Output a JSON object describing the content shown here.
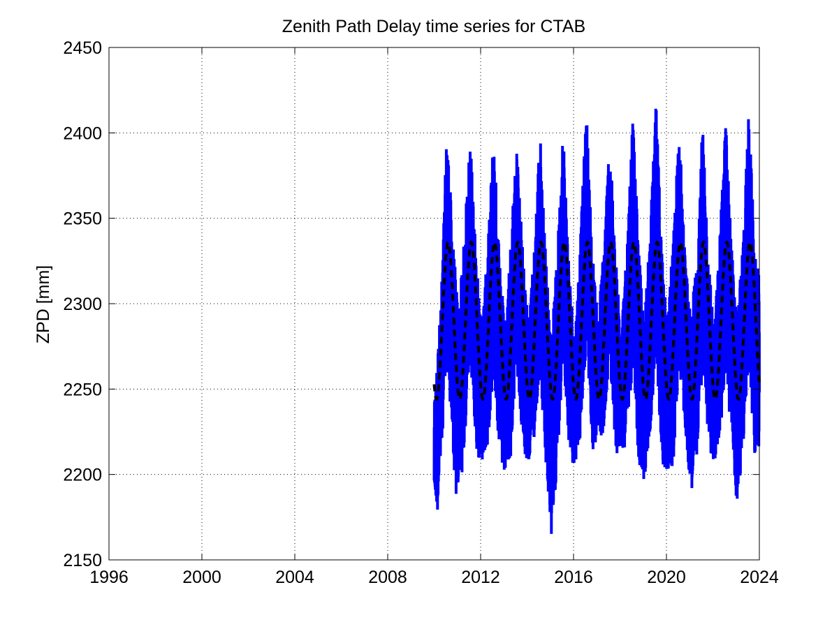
{
  "chart_data": {
    "type": "line",
    "title": "Zenith Path Delay time series for CTAB",
    "xlabel": "",
    "ylabel": "ZPD [mm]",
    "xlim": [
      1996,
      2024
    ],
    "ylim": [
      2150,
      2450
    ],
    "x_ticks": [
      "1996",
      "2000",
      "2004",
      "2008",
      "2012",
      "2016",
      "2020",
      "2024"
    ],
    "y_ticks": [
      "2150",
      "2200",
      "2250",
      "2300",
      "2350",
      "2400",
      "2450"
    ],
    "grid": true,
    "grid_style": "dotted",
    "series": [
      {
        "style": "solid",
        "color": "#0000ff",
        "x_start": 2010.0,
        "x_end": 2024.0,
        "upper_envelope": [
          [
            2010.0,
            2240
          ],
          [
            2010.3,
            2305
          ],
          [
            2010.55,
            2405
          ],
          [
            2010.8,
            2340
          ],
          [
            2011.05,
            2295
          ],
          [
            2011.3,
            2340
          ],
          [
            2011.55,
            2401
          ],
          [
            2011.8,
            2330
          ],
          [
            2012.05,
            2290
          ],
          [
            2012.3,
            2330
          ],
          [
            2012.55,
            2402
          ],
          [
            2012.8,
            2335
          ],
          [
            2013.05,
            2285
          ],
          [
            2013.3,
            2340
          ],
          [
            2013.55,
            2395
          ],
          [
            2013.8,
            2335
          ],
          [
            2014.05,
            2290
          ],
          [
            2014.3,
            2330
          ],
          [
            2014.55,
            2405
          ],
          [
            2014.8,
            2330
          ],
          [
            2015.05,
            2280
          ],
          [
            2015.3,
            2330
          ],
          [
            2015.55,
            2406
          ],
          [
            2015.8,
            2325
          ],
          [
            2016.05,
            2280
          ],
          [
            2016.3,
            2340
          ],
          [
            2016.55,
            2416
          ],
          [
            2016.8,
            2335
          ],
          [
            2017.05,
            2290
          ],
          [
            2017.3,
            2335
          ],
          [
            2017.55,
            2401
          ],
          [
            2017.8,
            2330
          ],
          [
            2018.05,
            2290
          ],
          [
            2018.3,
            2330
          ],
          [
            2018.55,
            2411
          ],
          [
            2018.8,
            2335
          ],
          [
            2019.05,
            2290
          ],
          [
            2019.3,
            2345
          ],
          [
            2019.55,
            2418
          ],
          [
            2019.8,
            2335
          ],
          [
            2020.05,
            2295
          ],
          [
            2020.3,
            2340
          ],
          [
            2020.55,
            2408
          ],
          [
            2020.8,
            2330
          ],
          [
            2021.05,
            2290
          ],
          [
            2021.3,
            2330
          ],
          [
            2021.55,
            2406
          ],
          [
            2021.8,
            2330
          ],
          [
            2022.05,
            2285
          ],
          [
            2022.3,
            2340
          ],
          [
            2022.55,
            2410
          ],
          [
            2022.8,
            2335
          ],
          [
            2023.05,
            2290
          ],
          [
            2023.3,
            2340
          ],
          [
            2023.55,
            2415
          ],
          [
            2023.8,
            2330
          ],
          [
            2024.0,
            2315
          ]
        ],
        "lower_envelope": [
          [
            2010.0,
            2190
          ],
          [
            2010.15,
            2178
          ],
          [
            2010.3,
            2210
          ],
          [
            2010.55,
            2265
          ],
          [
            2010.8,
            2215
          ],
          [
            2010.95,
            2183
          ],
          [
            2011.2,
            2200
          ],
          [
            2011.55,
            2265
          ],
          [
            2011.85,
            2210
          ],
          [
            2012.05,
            2205
          ],
          [
            2012.3,
            2215
          ],
          [
            2012.55,
            2260
          ],
          [
            2012.85,
            2205
          ],
          [
            2013.05,
            2198
          ],
          [
            2013.3,
            2210
          ],
          [
            2013.55,
            2265
          ],
          [
            2013.85,
            2210
          ],
          [
            2014.05,
            2205
          ],
          [
            2014.3,
            2220
          ],
          [
            2014.55,
            2260
          ],
          [
            2014.8,
            2205
          ],
          [
            2015.05,
            2162
          ],
          [
            2015.3,
            2205
          ],
          [
            2015.55,
            2270
          ],
          [
            2015.85,
            2208
          ],
          [
            2016.05,
            2205
          ],
          [
            2016.3,
            2220
          ],
          [
            2016.55,
            2275
          ],
          [
            2016.85,
            2210
          ],
          [
            2017.05,
            2225
          ],
          [
            2017.3,
            2220
          ],
          [
            2017.55,
            2270
          ],
          [
            2017.85,
            2207
          ],
          [
            2018.05,
            2215
          ],
          [
            2018.3,
            2215
          ],
          [
            2018.55,
            2265
          ],
          [
            2018.8,
            2205
          ],
          [
            2019.05,
            2196
          ],
          [
            2019.3,
            2225
          ],
          [
            2019.55,
            2265
          ],
          [
            2019.85,
            2205
          ],
          [
            2020.05,
            2200
          ],
          [
            2020.3,
            2205
          ],
          [
            2020.55,
            2265
          ],
          [
            2020.85,
            2220
          ],
          [
            2021.05,
            2188
          ],
          [
            2021.3,
            2210
          ],
          [
            2021.55,
            2260
          ],
          [
            2021.85,
            2215
          ],
          [
            2022.05,
            2205
          ],
          [
            2022.3,
            2220
          ],
          [
            2022.55,
            2260
          ],
          [
            2022.85,
            2210
          ],
          [
            2023.05,
            2180
          ],
          [
            2023.3,
            2215
          ],
          [
            2023.55,
            2265
          ],
          [
            2023.8,
            2212
          ],
          [
            2024.0,
            2212
          ]
        ]
      },
      {
        "style": "dashed",
        "color": "#000000",
        "kind": "seasonal model",
        "x_start": 2010.0,
        "x_end": 2024.0,
        "mean": 2290,
        "amplitude": 46,
        "peak_fraction_of_year": 0.6
      }
    ]
  }
}
